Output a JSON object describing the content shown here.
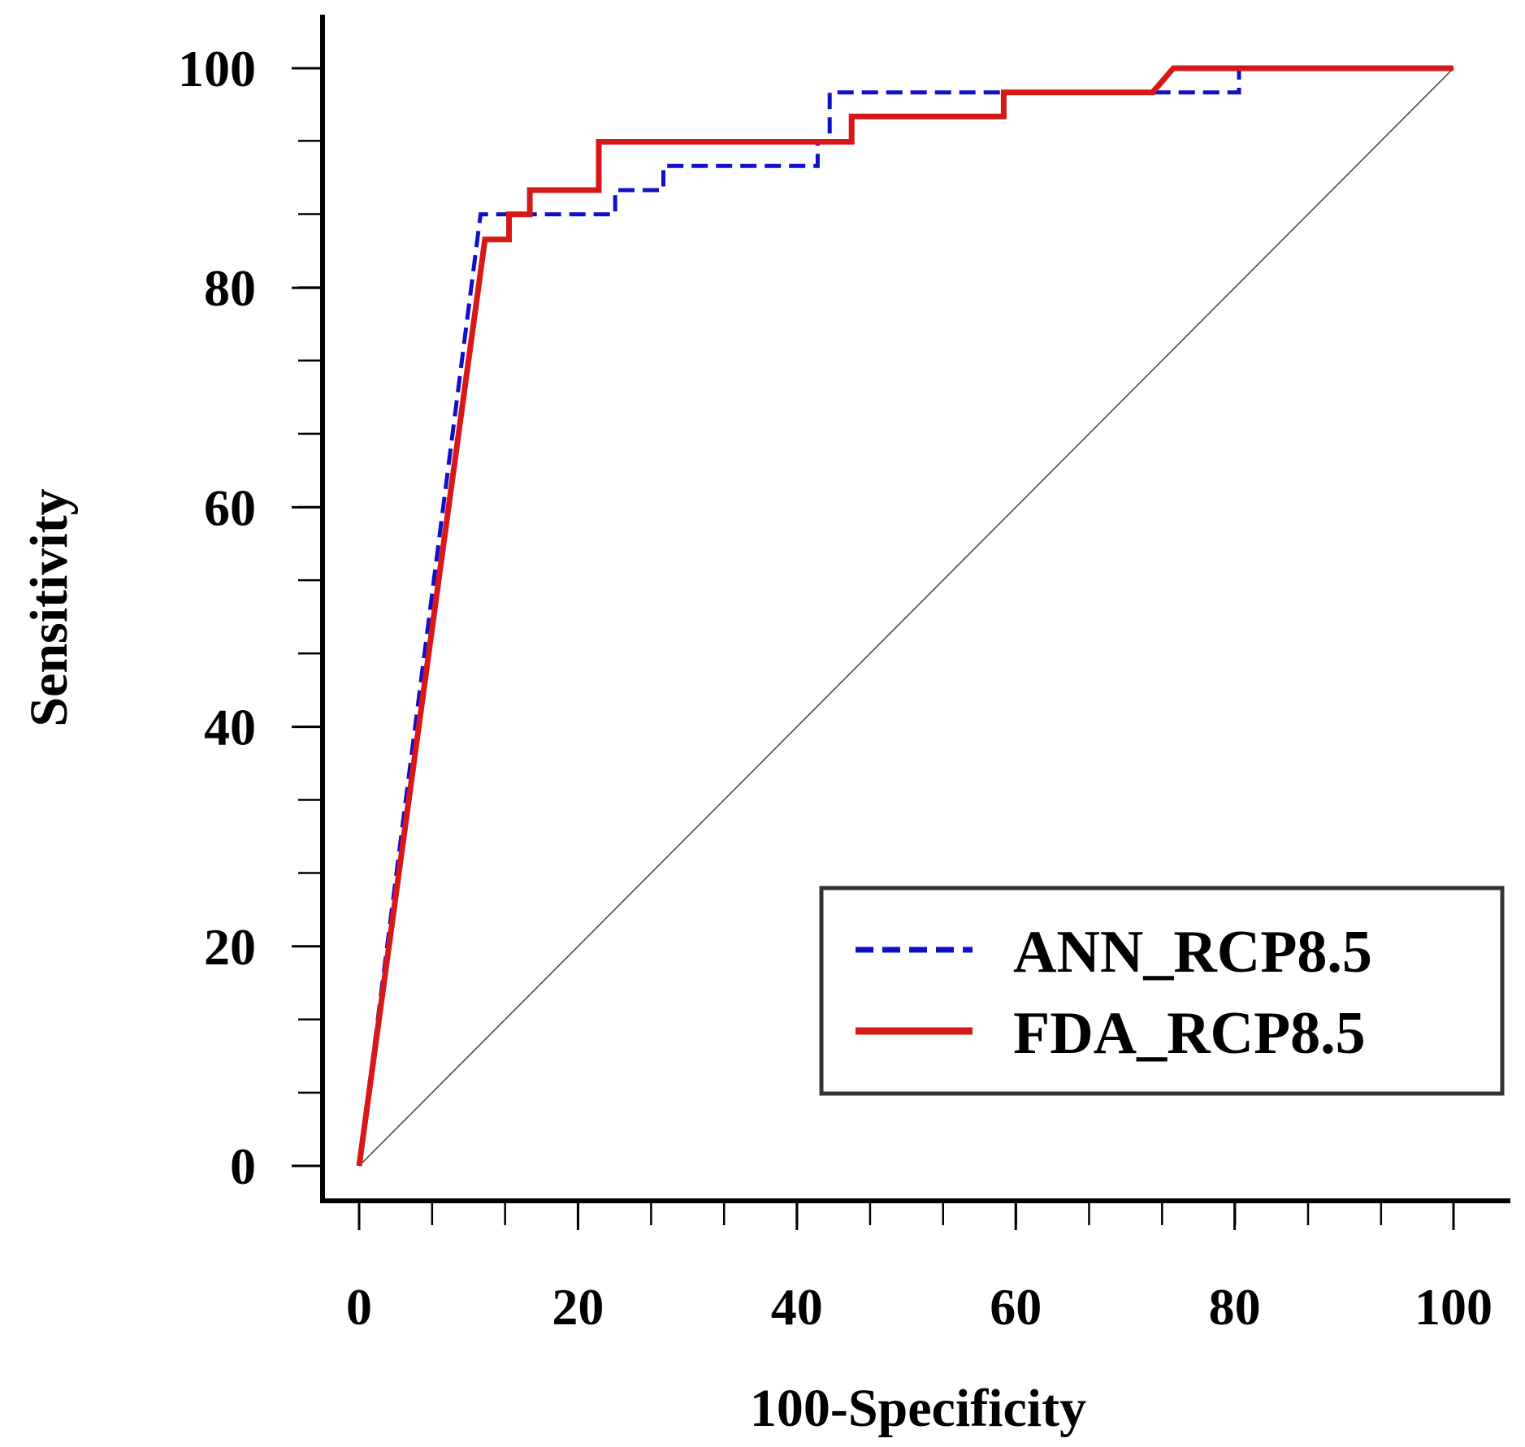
{
  "chart_data": {
    "type": "line",
    "title": "",
    "xlabel": "100-Specificity",
    "ylabel": "Sensitivity",
    "xlim": [
      0,
      100
    ],
    "ylim": [
      0,
      100
    ],
    "xticks": [
      0,
      20,
      40,
      60,
      80,
      100
    ],
    "yticks": [
      0,
      20,
      40,
      60,
      80,
      100
    ],
    "xminor_step": 6.67,
    "yminor_step": 6.67,
    "grid": false,
    "legend_position": "bottom-right",
    "series": [
      {
        "name": "ANN_RCP8.5",
        "style": "dashed",
        "color": "#1010c8",
        "points": [
          [
            0,
            0
          ],
          [
            11.1,
            86.7
          ],
          [
            23.4,
            86.7
          ],
          [
            23.4,
            88.9
          ],
          [
            27.8,
            88.9
          ],
          [
            27.8,
            91.1
          ],
          [
            41.9,
            91.1
          ],
          [
            41.9,
            93.3
          ],
          [
            43,
            93.3
          ],
          [
            43,
            97.8
          ],
          [
            80.4,
            97.8
          ],
          [
            80.4,
            100
          ],
          [
            100,
            100
          ]
        ]
      },
      {
        "name": "FDA_RCP8.5",
        "style": "solid",
        "color": "#d81818",
        "points": [
          [
            0,
            0
          ],
          [
            11.5,
            84.4
          ],
          [
            13.7,
            84.4
          ],
          [
            13.7,
            86.7
          ],
          [
            15.6,
            86.7
          ],
          [
            15.6,
            88.9
          ],
          [
            21.9,
            88.9
          ],
          [
            21.9,
            93.3
          ],
          [
            45,
            93.3
          ],
          [
            45,
            95.6
          ],
          [
            58.9,
            95.6
          ],
          [
            58.9,
            97.8
          ],
          [
            72.5,
            97.8
          ],
          [
            74.4,
            100
          ],
          [
            100,
            100
          ]
        ]
      },
      {
        "name": "reference",
        "style": "thin",
        "color": "#404040",
        "points": [
          [
            0,
            0
          ],
          [
            100,
            100
          ]
        ]
      }
    ]
  }
}
